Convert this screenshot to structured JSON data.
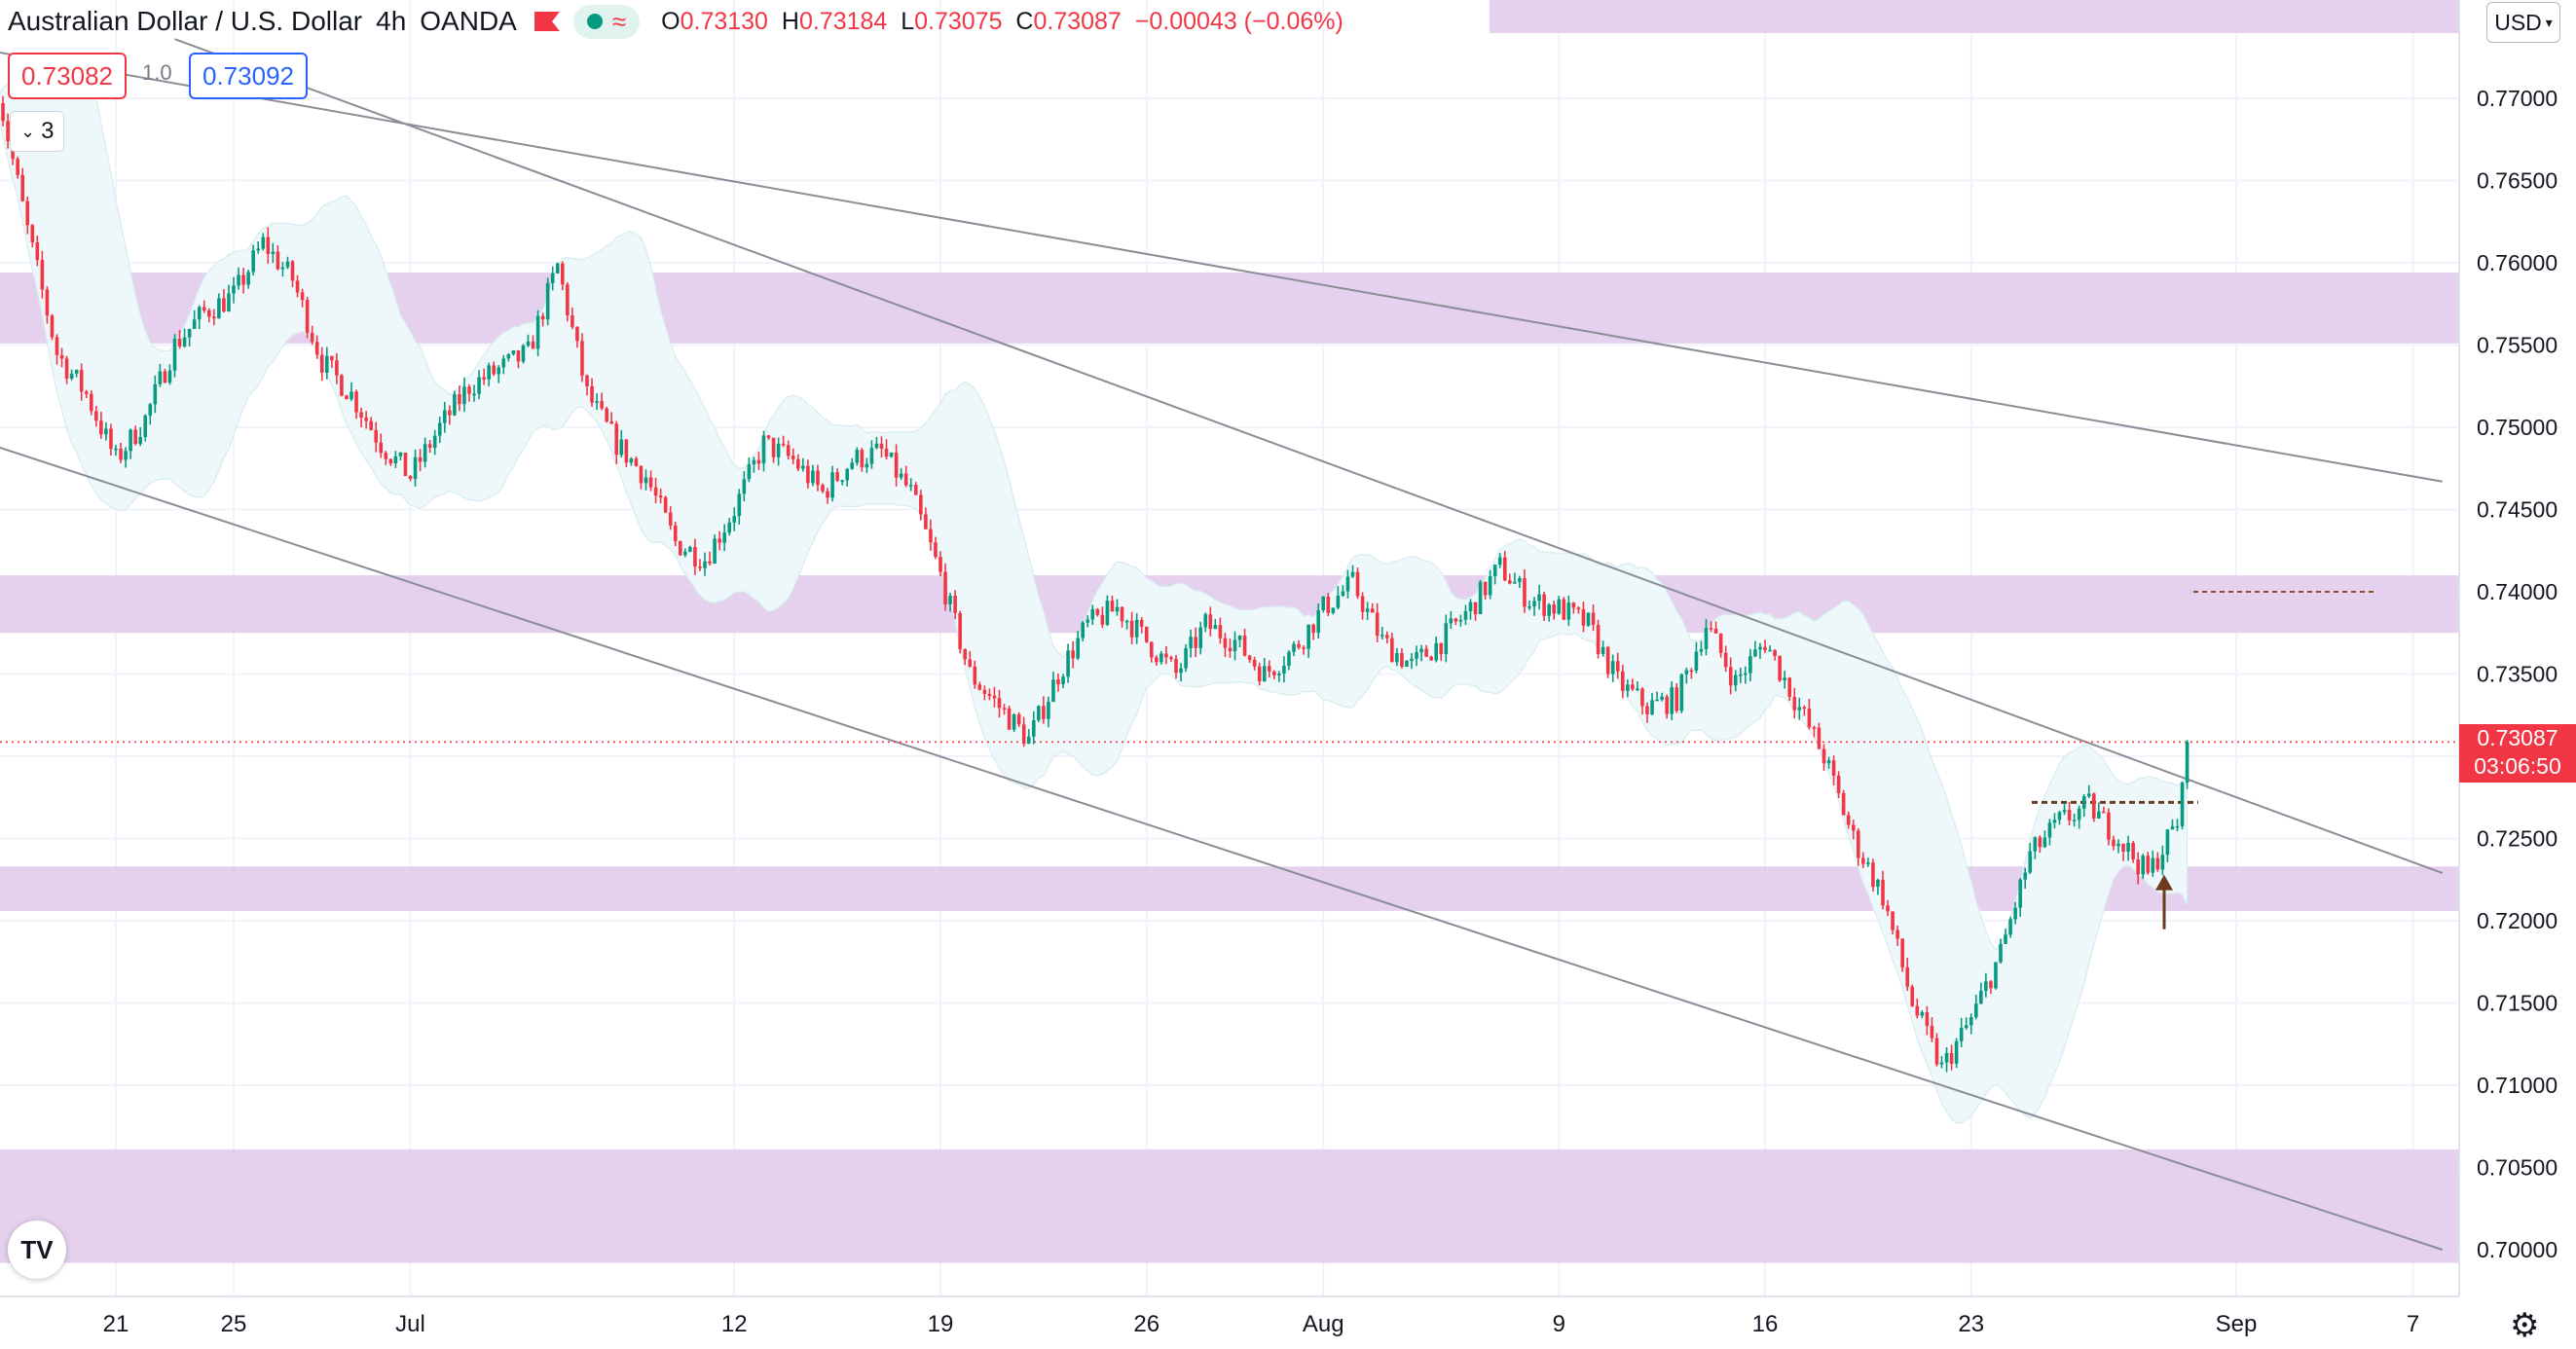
{
  "header": {
    "symbol": "Australian Dollar / U.S. Dollar",
    "interval": "4h",
    "broker": "OANDA",
    "ohlc": {
      "o_label": "O",
      "o": "0.73130",
      "h_label": "H",
      "h": "0.73184",
      "l_label": "L",
      "l": "0.73075",
      "c_label": "C",
      "c": "0.73087",
      "change": "−0.00043 (−0.06%)"
    }
  },
  "trade": {
    "sell": "0.73082",
    "spread": "1.0",
    "buy": "0.73092"
  },
  "indicators_toggle": {
    "count": "3"
  },
  "currency": "USD",
  "last_price": {
    "value": "0.73087",
    "countdown": "03:06:50"
  },
  "colors": {
    "up": "#089981",
    "down": "#f23645",
    "zone": "#e1c8ea",
    "band": "#eef8fa",
    "trendline": "#8a8d96"
  },
  "chart_data": {
    "type": "candlestick",
    "y_ticks": [
      "0.77000",
      "0.76500",
      "0.76000",
      "0.75500",
      "0.75000",
      "0.74500",
      "0.74000",
      "0.73500",
      "0.73000",
      "0.72500",
      "0.72000",
      "0.71500",
      "0.71000",
      "0.70500",
      "0.70000"
    ],
    "x_ticks": [
      "21",
      "25",
      "Jul",
      "12",
      "19",
      "26",
      "Aug",
      "9",
      "16",
      "23",
      "Sep",
      "7"
    ],
    "zones": [
      [
        0.7551,
        0.7594
      ],
      [
        0.7375,
        0.741
      ],
      [
        0.7206,
        0.7233
      ],
      [
        0.6992,
        0.7061
      ]
    ],
    "trendlines": [
      {
        "from": [
          "Jun 17",
          0.7728
        ],
        "to": [
          "Sep 8",
          0.7467
        ]
      },
      {
        "from": [
          "Jun 23",
          0.7736
        ],
        "to": [
          "Sep 8",
          0.7229
        ]
      },
      {
        "from": [
          "Jun 17",
          0.7488
        ],
        "to": [
          "Sep 8",
          0.7
        ]
      }
    ],
    "horizontal_levels": [
      {
        "price": 0.74,
        "style": "dashed"
      },
      {
        "price": 0.7272,
        "style": "dashed"
      },
      {
        "price": 0.73087,
        "style": "dotted"
      }
    ],
    "bollinger": true,
    "arrow_up": {
      "date": "Aug 27",
      "price": 0.7225
    },
    "path": [
      [
        "Jun 17",
        0.7705
      ],
      [
        "Jun 18",
        0.762
      ],
      [
        "Jun 19",
        0.7545
      ],
      [
        "Jun 20",
        0.752
      ],
      [
        "Jun 21",
        0.748
      ],
      [
        "Jun 22",
        0.7505
      ],
      [
        "Jun 23",
        0.755
      ],
      [
        "Jun 24",
        0.757
      ],
      [
        "Jun 25",
        0.758
      ],
      [
        "Jun 26",
        0.7612
      ],
      [
        "Jun 27",
        0.759
      ],
      [
        "Jun 28",
        0.754
      ],
      [
        "Jun 29",
        0.752
      ],
      [
        "Jun 30",
        0.749
      ],
      [
        "Jul 1",
        0.747
      ],
      [
        "Jul 2",
        0.75
      ],
      [
        "Jul 3",
        0.7525
      ],
      [
        "Jul 4",
        0.7535
      ],
      [
        "Jul 5",
        0.7545
      ],
      [
        "Jul 6",
        0.7598
      ],
      [
        "Jul 7",
        0.752
      ],
      [
        "Jul 8",
        0.749
      ],
      [
        "Jul 9",
        0.747
      ],
      [
        "Jul 10",
        0.743
      ],
      [
        "Jul 11",
        0.742
      ],
      [
        "Jul 12",
        0.745
      ],
      [
        "Jul 13",
        0.749
      ],
      [
        "Jul 14",
        0.748
      ],
      [
        "Jul 15",
        0.746
      ],
      [
        "Jul 16",
        0.748
      ],
      [
        "Jul 17",
        0.7485
      ],
      [
        "Jul 18",
        0.746
      ],
      [
        "Jul 19",
        0.741
      ],
      [
        "Jul 20",
        0.735
      ],
      [
        "Jul 21",
        0.733
      ],
      [
        "Jul 22",
        0.731
      ],
      [
        "Jul 23",
        0.735
      ],
      [
        "Jul 24",
        0.738
      ],
      [
        "Jul 25",
        0.739
      ],
      [
        "Jul 26",
        0.737
      ],
      [
        "Jul 27",
        0.735
      ],
      [
        "Jul 28",
        0.738
      ],
      [
        "Jul 29",
        0.737
      ],
      [
        "Jul 30",
        0.735
      ],
      [
        "Jul 31",
        0.7365
      ],
      [
        "Aug 1",
        0.739
      ],
      [
        "Aug 2",
        0.7405
      ],
      [
        "Aug 3",
        0.737
      ],
      [
        "Aug 4",
        0.7355
      ],
      [
        "Aug 5",
        0.737
      ],
      [
        "Aug 6",
        0.739
      ],
      [
        "Aug 7",
        0.7415
      ],
      [
        "Aug 8",
        0.7395
      ],
      [
        "Aug 9",
        0.739
      ],
      [
        "Aug 10",
        0.738
      ],
      [
        "Aug 11",
        0.7345
      ],
      [
        "Aug 12",
        0.733
      ],
      [
        "Aug 13",
        0.7335
      ],
      [
        "Aug 14",
        0.738
      ],
      [
        "Aug 15",
        0.7345
      ],
      [
        "Aug 16",
        0.737
      ],
      [
        "Aug 17",
        0.7335
      ],
      [
        "Aug 18",
        0.73
      ],
      [
        "Aug 19",
        0.725
      ],
      [
        "Aug 20",
        0.7215
      ],
      [
        "Aug 21",
        0.715
      ],
      [
        "Aug 22",
        0.711
      ],
      [
        "Aug 23",
        0.714
      ],
      [
        "Aug 24",
        0.718
      ],
      [
        "Aug 25",
        0.724
      ],
      [
        "Aug 26",
        0.726
      ],
      [
        "Aug 27",
        0.727
      ],
      [
        "Aug 28",
        0.725
      ],
      [
        "Aug 29",
        0.7228
      ],
      [
        "Aug 30",
        0.726
      ],
      [
        "Aug 30.5",
        0.7312
      ]
    ]
  }
}
